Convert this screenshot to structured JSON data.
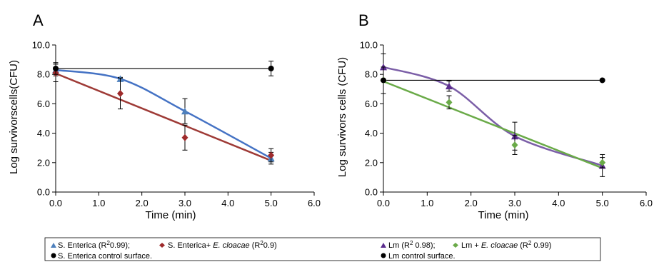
{
  "chart_data": [
    {
      "panel_label": "A",
      "type": "scatter",
      "xlabel": "Time (min)",
      "ylabel": "Log survivorscells(CFU)",
      "xlim": [
        0,
        6
      ],
      "ylim": [
        0,
        10
      ],
      "xticks": [
        "0.0",
        "1.0",
        "2.0",
        "3.0",
        "4.0",
        "5.0",
        "6.0"
      ],
      "yticks": [
        "0.0",
        "2.0",
        "4.0",
        "6.0",
        "8.0",
        "10.0"
      ],
      "grid": false,
      "series": [
        {
          "key": "se",
          "marker": "triangle",
          "color": "#4f81bd",
          "line_color": "#4472c4",
          "fit": "smooth",
          "points": [
            {
              "x": 0.0,
              "y": 8.3,
              "err": 0.4
            },
            {
              "x": 1.5,
              "y": 7.7,
              "err": 0.1
            },
            {
              "x": 3.0,
              "y": 5.5,
              "err": 0.85
            },
            {
              "x": 5.0,
              "y": 2.3,
              "err": 0.4
            }
          ]
        },
        {
          "key": "se_ec",
          "marker": "diamond",
          "color": "#9e2a2b",
          "line_color": "#9e3a36",
          "fit": "linear",
          "points": [
            {
              "x": 0.0,
              "y": 8.1,
              "err": 0.6
            },
            {
              "x": 1.5,
              "y": 6.7,
              "err": 1.05
            },
            {
              "x": 3.0,
              "y": 3.7,
              "err": 0.85
            },
            {
              "x": 5.0,
              "y": 2.5,
              "err": 0.45
            }
          ]
        },
        {
          "key": "se_ctrl",
          "marker": "circle",
          "color": "#000000",
          "line_color": "#000000",
          "fit": "linear",
          "points": [
            {
              "x": 0.0,
              "y": 8.4,
              "err": 0.4
            },
            {
              "x": 5.0,
              "y": 8.4,
              "err": 0.5
            }
          ]
        }
      ]
    },
    {
      "panel_label": "B",
      "type": "scatter",
      "xlabel": "Time (min)",
      "ylabel": "Log survivors cells (CFU)",
      "xlim": [
        0,
        6
      ],
      "ylim": [
        0,
        10
      ],
      "xticks": [
        "0.0",
        "1.0",
        "2.0",
        "3.0",
        "4.0",
        "5.0",
        "6.0"
      ],
      "yticks": [
        "0.0",
        "2.0",
        "4.0",
        "6.0",
        "8.0",
        "10.0"
      ],
      "grid": false,
      "series": [
        {
          "key": "lm",
          "marker": "triangle",
          "color": "#5b2c8e",
          "line_color": "#7b5ea7",
          "fit": "smooth",
          "points": [
            {
              "x": 0.0,
              "y": 8.5,
              "err": 0.9
            },
            {
              "x": 1.5,
              "y": 7.2,
              "err": 0.35
            },
            {
              "x": 3.0,
              "y": 3.8,
              "err": 0.95
            },
            {
              "x": 5.0,
              "y": 1.8,
              "err": 0.75
            }
          ]
        },
        {
          "key": "lm_ec",
          "marker": "diamond",
          "color": "#6aaa48",
          "line_color": "#6aaa48",
          "fit": "linear",
          "points": [
            {
              "x": 0.0,
              "y": 7.6,
              "err": 0.9
            },
            {
              "x": 1.5,
              "y": 6.1,
              "err": 0.45
            },
            {
              "x": 3.0,
              "y": 3.2,
              "err": 0.65
            },
            {
              "x": 5.0,
              "y": 2.0,
              "err": 0.35
            }
          ]
        },
        {
          "key": "lm_ctrl",
          "marker": "circle",
          "color": "#000000",
          "line_color": "#000000",
          "fit": "linear",
          "points": [
            {
              "x": 0.0,
              "y": 7.6,
              "err": 0.0
            },
            {
              "x": 5.0,
              "y": 7.6,
              "err": 0.0
            }
          ]
        }
      ]
    }
  ],
  "legend": {
    "placement": "bottom",
    "left": {
      "row1": [
        {
          "marker": "triangle",
          "color": "#4f81bd",
          "text": "S. Enterica (R",
          "sup": "2",
          "text2": "0.99); "
        },
        {
          "marker": "diamond",
          "color": "#9e2a2b",
          "text": "S. Enterica+ ",
          "italic": "E. cloacae",
          "text2": " (R",
          "sup": "2",
          "text3": "0.9)"
        }
      ],
      "row2": {
        "marker": "circle",
        "color": "#000000",
        "text": "S. Enterica control surface."
      }
    },
    "right": {
      "row1": [
        {
          "marker": "triangle",
          "color": "#5b2c8e",
          "text": "Lm  (R",
          "sup": "2",
          "text2": " 0.98); "
        },
        {
          "marker": "diamond",
          "color": "#6aaa48",
          "text": "Lm + ",
          "italic": "E. cloacae",
          "text2": " (R",
          "sup": "2",
          "text3": " 0.99)"
        }
      ],
      "row2": {
        "marker": "circle",
        "color": "#000000",
        "text": "Lm control surface."
      }
    }
  }
}
